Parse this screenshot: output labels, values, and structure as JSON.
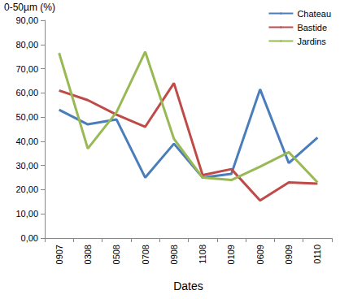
{
  "chart_data": {
    "type": "line",
    "x_label": "Dates",
    "y_label": "0-50µm (%)",
    "categories": [
      "0907",
      "0308",
      "0508",
      "0708",
      "0908",
      "1108",
      "0109",
      "0609",
      "0909",
      "0110"
    ],
    "series": [
      {
        "name": "Chateau",
        "color": "#4a7ebb",
        "values": [
          53,
          47,
          49,
          25,
          39,
          25,
          26.5,
          61.5,
          31,
          41.5
        ]
      },
      {
        "name": "Bastide",
        "color": "#be4b48",
        "values": [
          61,
          57,
          51,
          46,
          64,
          26,
          28.5,
          15.5,
          23,
          22.5
        ]
      },
      {
        "name": "Jardins",
        "color": "#98b954",
        "values": [
          76.5,
          37,
          52,
          77,
          41,
          25,
          24,
          29.5,
          35.5,
          23
        ]
      }
    ],
    "ylim": [
      0,
      90
    ],
    "yticks": [
      {
        "value": 0,
        "label": "0,00"
      },
      {
        "value": 10,
        "label": "10,00"
      },
      {
        "value": 20,
        "label": "20,00"
      },
      {
        "value": 30,
        "label": "30,00"
      },
      {
        "value": 40,
        "label": "40,00"
      },
      {
        "value": 50,
        "label": "50,00"
      },
      {
        "value": 60,
        "label": "60,00"
      },
      {
        "value": 70,
        "label": "70,00"
      },
      {
        "value": 80,
        "label": "80,00"
      },
      {
        "value": 90,
        "label": "90,00"
      }
    ],
    "grid": false,
    "legend": "top-right",
    "marker": "none",
    "line_style": "solid"
  }
}
